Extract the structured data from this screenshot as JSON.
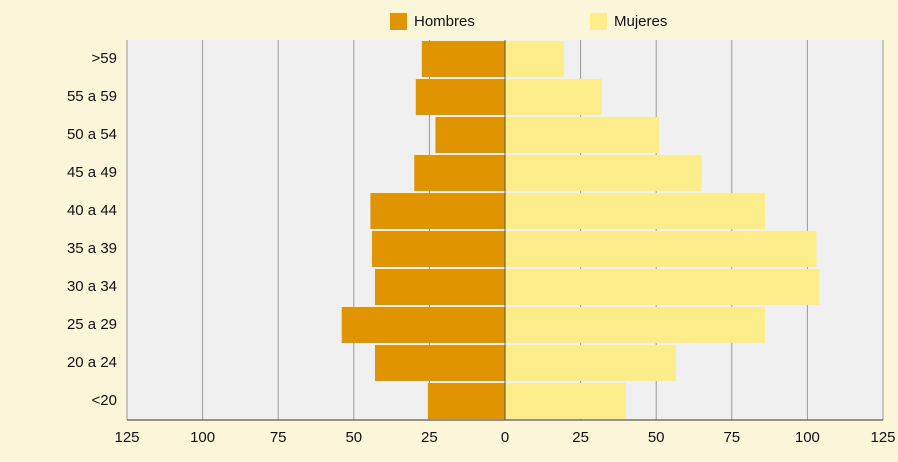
{
  "chart_data": {
    "type": "bar",
    "orientation": "horizontal",
    "categories": [
      ">59",
      "55 a 59",
      "50 a 54",
      "45 a 49",
      "40 a 44",
      "35 a 39",
      "30 a 34",
      "25 a 29",
      "20 a 24",
      "<20"
    ],
    "series": [
      {
        "name": "Hombres",
        "color": "#e09400",
        "values": [
          -27.5,
          -29.5,
          -23,
          -30,
          -44.5,
          -44,
          -43,
          -54,
          -43,
          -25.5
        ]
      },
      {
        "name": "Mujeres",
        "color": "#fdec8a",
        "values": [
          19.5,
          32,
          51,
          65,
          86,
          103,
          104,
          86,
          56.5,
          40
        ]
      }
    ],
    "xlim": [
      -125,
      125
    ],
    "xticks": [
      {
        "value": -125,
        "label": "125"
      },
      {
        "value": -100,
        "label": "100"
      },
      {
        "value": -75,
        "label": "75"
      },
      {
        "value": -50,
        "label": "50"
      },
      {
        "value": -25,
        "label": "25"
      },
      0,
      25,
      50,
      75,
      100,
      125
    ],
    "grid": true,
    "legend": "top"
  }
}
